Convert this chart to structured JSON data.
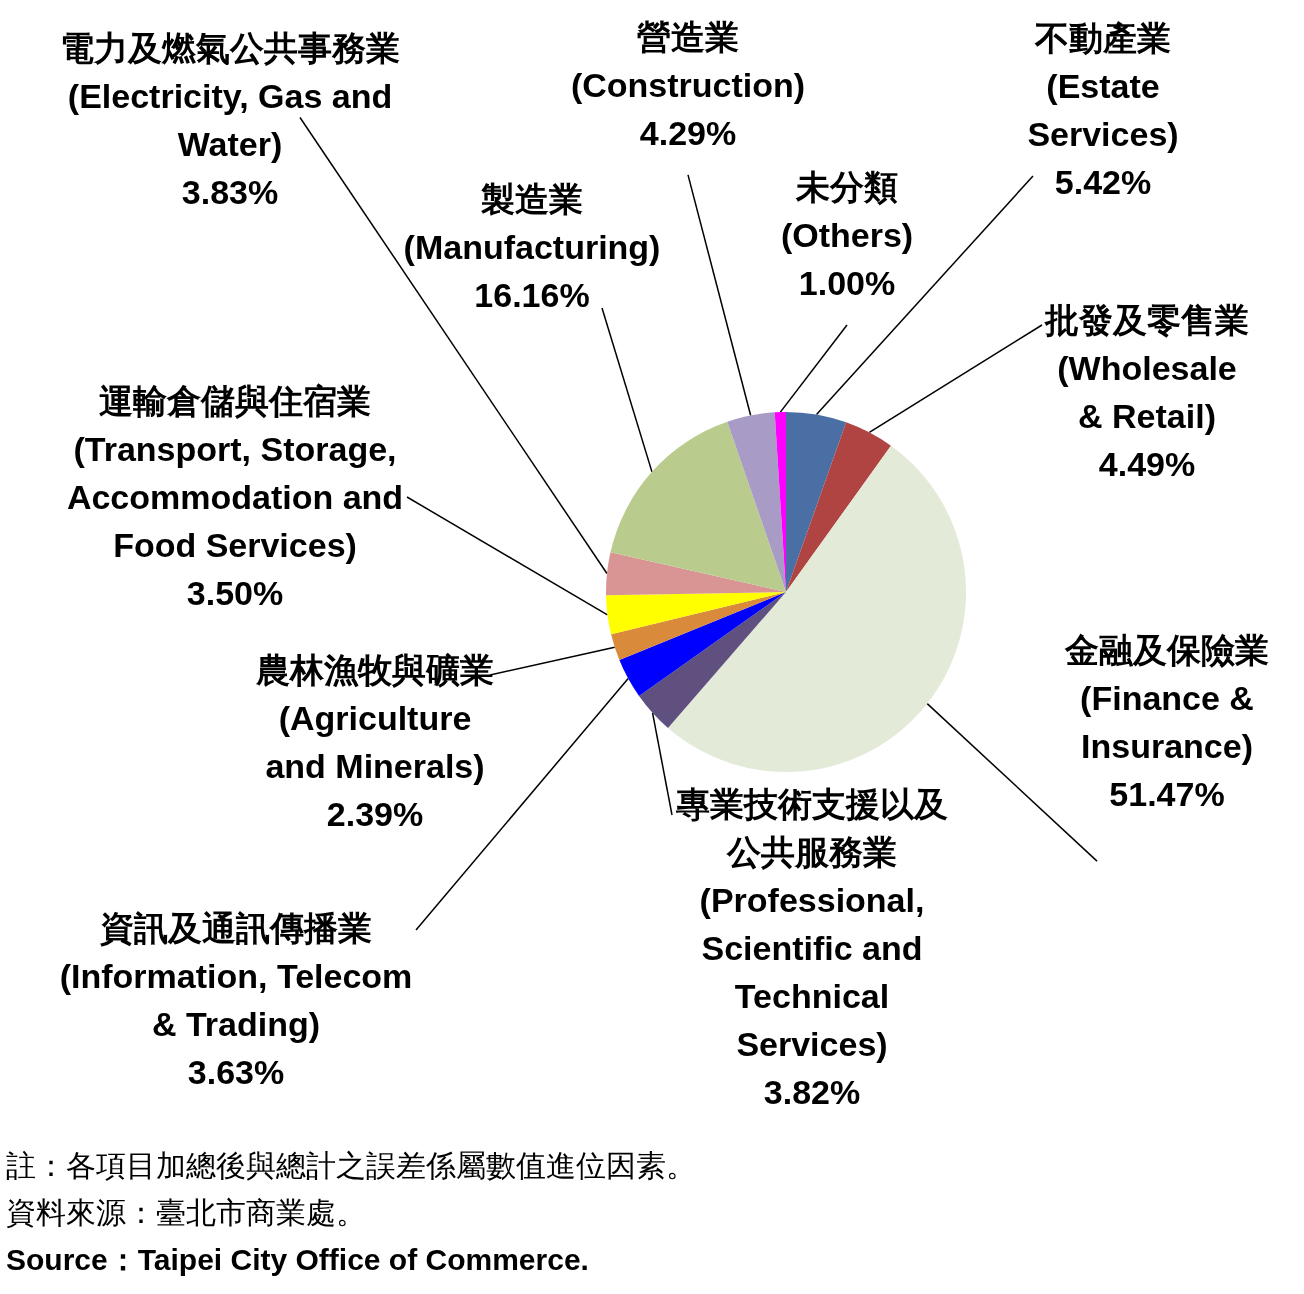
{
  "chart_data": {
    "type": "pie",
    "categories": [
      "不動產業\n(Estate\nServices)",
      "批發及零售業\n(Wholesale\n& Retail)",
      "金融及保險業\n(Finance &\nInsurance)",
      "專業技術支援以及公共服務業\n(Professional,\nScientific and\nTechnical\nServices)",
      "資訊及通訊傳播業\n(Information, Telecom\n& Trading)",
      "農林漁牧與礦業\n(Agriculture\nand Minerals)",
      "運輸倉儲與住宿業\n(Transport, Storage,\nAccommodation and\nFood Services)",
      "電力及燃氣公共事務業\n(Electricity, Gas and\nWater)",
      "製造業\n(Manufacturing)",
      "營造業\n(Construction)",
      "未分類\n(Others)"
    ],
    "values": [
      5.42,
      4.49,
      51.47,
      3.82,
      3.63,
      2.39,
      3.5,
      3.83,
      16.16,
      4.29,
      1.0
    ],
    "value_labels": [
      "5.42%",
      "4.49%",
      "51.47%",
      "3.82%",
      "3.63%",
      "2.39%",
      "3.50%",
      "3.83%",
      "16.16%",
      "4.29%",
      "1.00%"
    ],
    "colors": [
      "#4a6fa5",
      "#b04442",
      "#e4ead8",
      "#60507f",
      "#0000ff",
      "#d98a3a",
      "#ffff00",
      "#d99594",
      "#b9cc8e",
      "#a89cc6",
      "#ff00ff"
    ],
    "legend": false,
    "annotations": [
      "註：各項目加總後與總計之誤差係屬數值進位因素。",
      "資料來源：臺北市商業處。",
      "Source：Taipei City Office of Commerce."
    ]
  }
}
